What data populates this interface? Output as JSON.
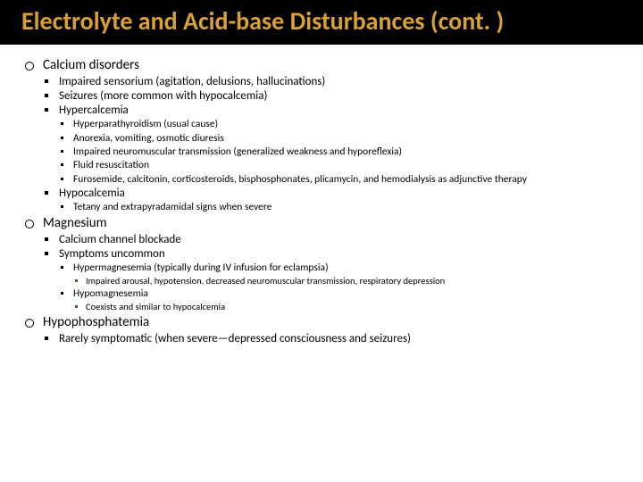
{
  "title": "Electrolyte and Acid-base Disturbances (cont. )",
  "colors": {
    "title_bg": "#000000",
    "title_fg": "#d9a033",
    "body_bg": "#ffffff",
    "text": "#000000",
    "lvl4_bullet": "#7a4a2a"
  },
  "typography": {
    "title_fontsize": 28,
    "lvl1_fontsize": 15,
    "lvl2_fontsize": 13,
    "lvl3_fontsize": 11.5,
    "lvl4_fontsize": 10.5,
    "font_family": "Segoe UI / Calibri"
  },
  "l1": {
    "calcium": "Calcium disorders",
    "magnesium": "Magnesium",
    "hypophos": "Hypophosphatemia"
  },
  "calcium": {
    "impaired": "Impaired sensorium (agitation, delusions, hallucinations)",
    "seizures": "Seizures (more common with hypocalcemia)",
    "hypercalcemia": "Hypercalcemia",
    "hyper": {
      "a": "Hyperparathyroidism (usual cause)",
      "b": "Anorexia, vomiting, osmotic diuresis",
      "c": "Impaired neuromuscular transmission (generalized weakness and hyporeflexia)",
      "d": "Fluid resuscitation",
      "e": "Furosemide, calcitonin, corticosteroids, bisphosphonates, plicamycin, and hemodialysis as adjunctive therapy"
    },
    "hypocalcemia": "Hypocalcemia",
    "hypo": {
      "a": "Tetany and extrapyradamidal signs when severe"
    }
  },
  "magnesium": {
    "blockade": "Calcium channel blockade",
    "symptoms": "Symptoms uncommon",
    "hypermag": "Hypermagnesemia (typically during IV infusion for eclampsia)",
    "hypermag_sub": "Impaired arousal, hypotension, decreased neuromuscular transmission, respiratory depression",
    "hypomag": "Hypomagnesemia",
    "hypomag_sub": "Coexists and similar to hypocalcemia"
  },
  "hypophos": {
    "rarely": "Rarely symptomatic (when severe—depressed consciousness and seizures)"
  }
}
